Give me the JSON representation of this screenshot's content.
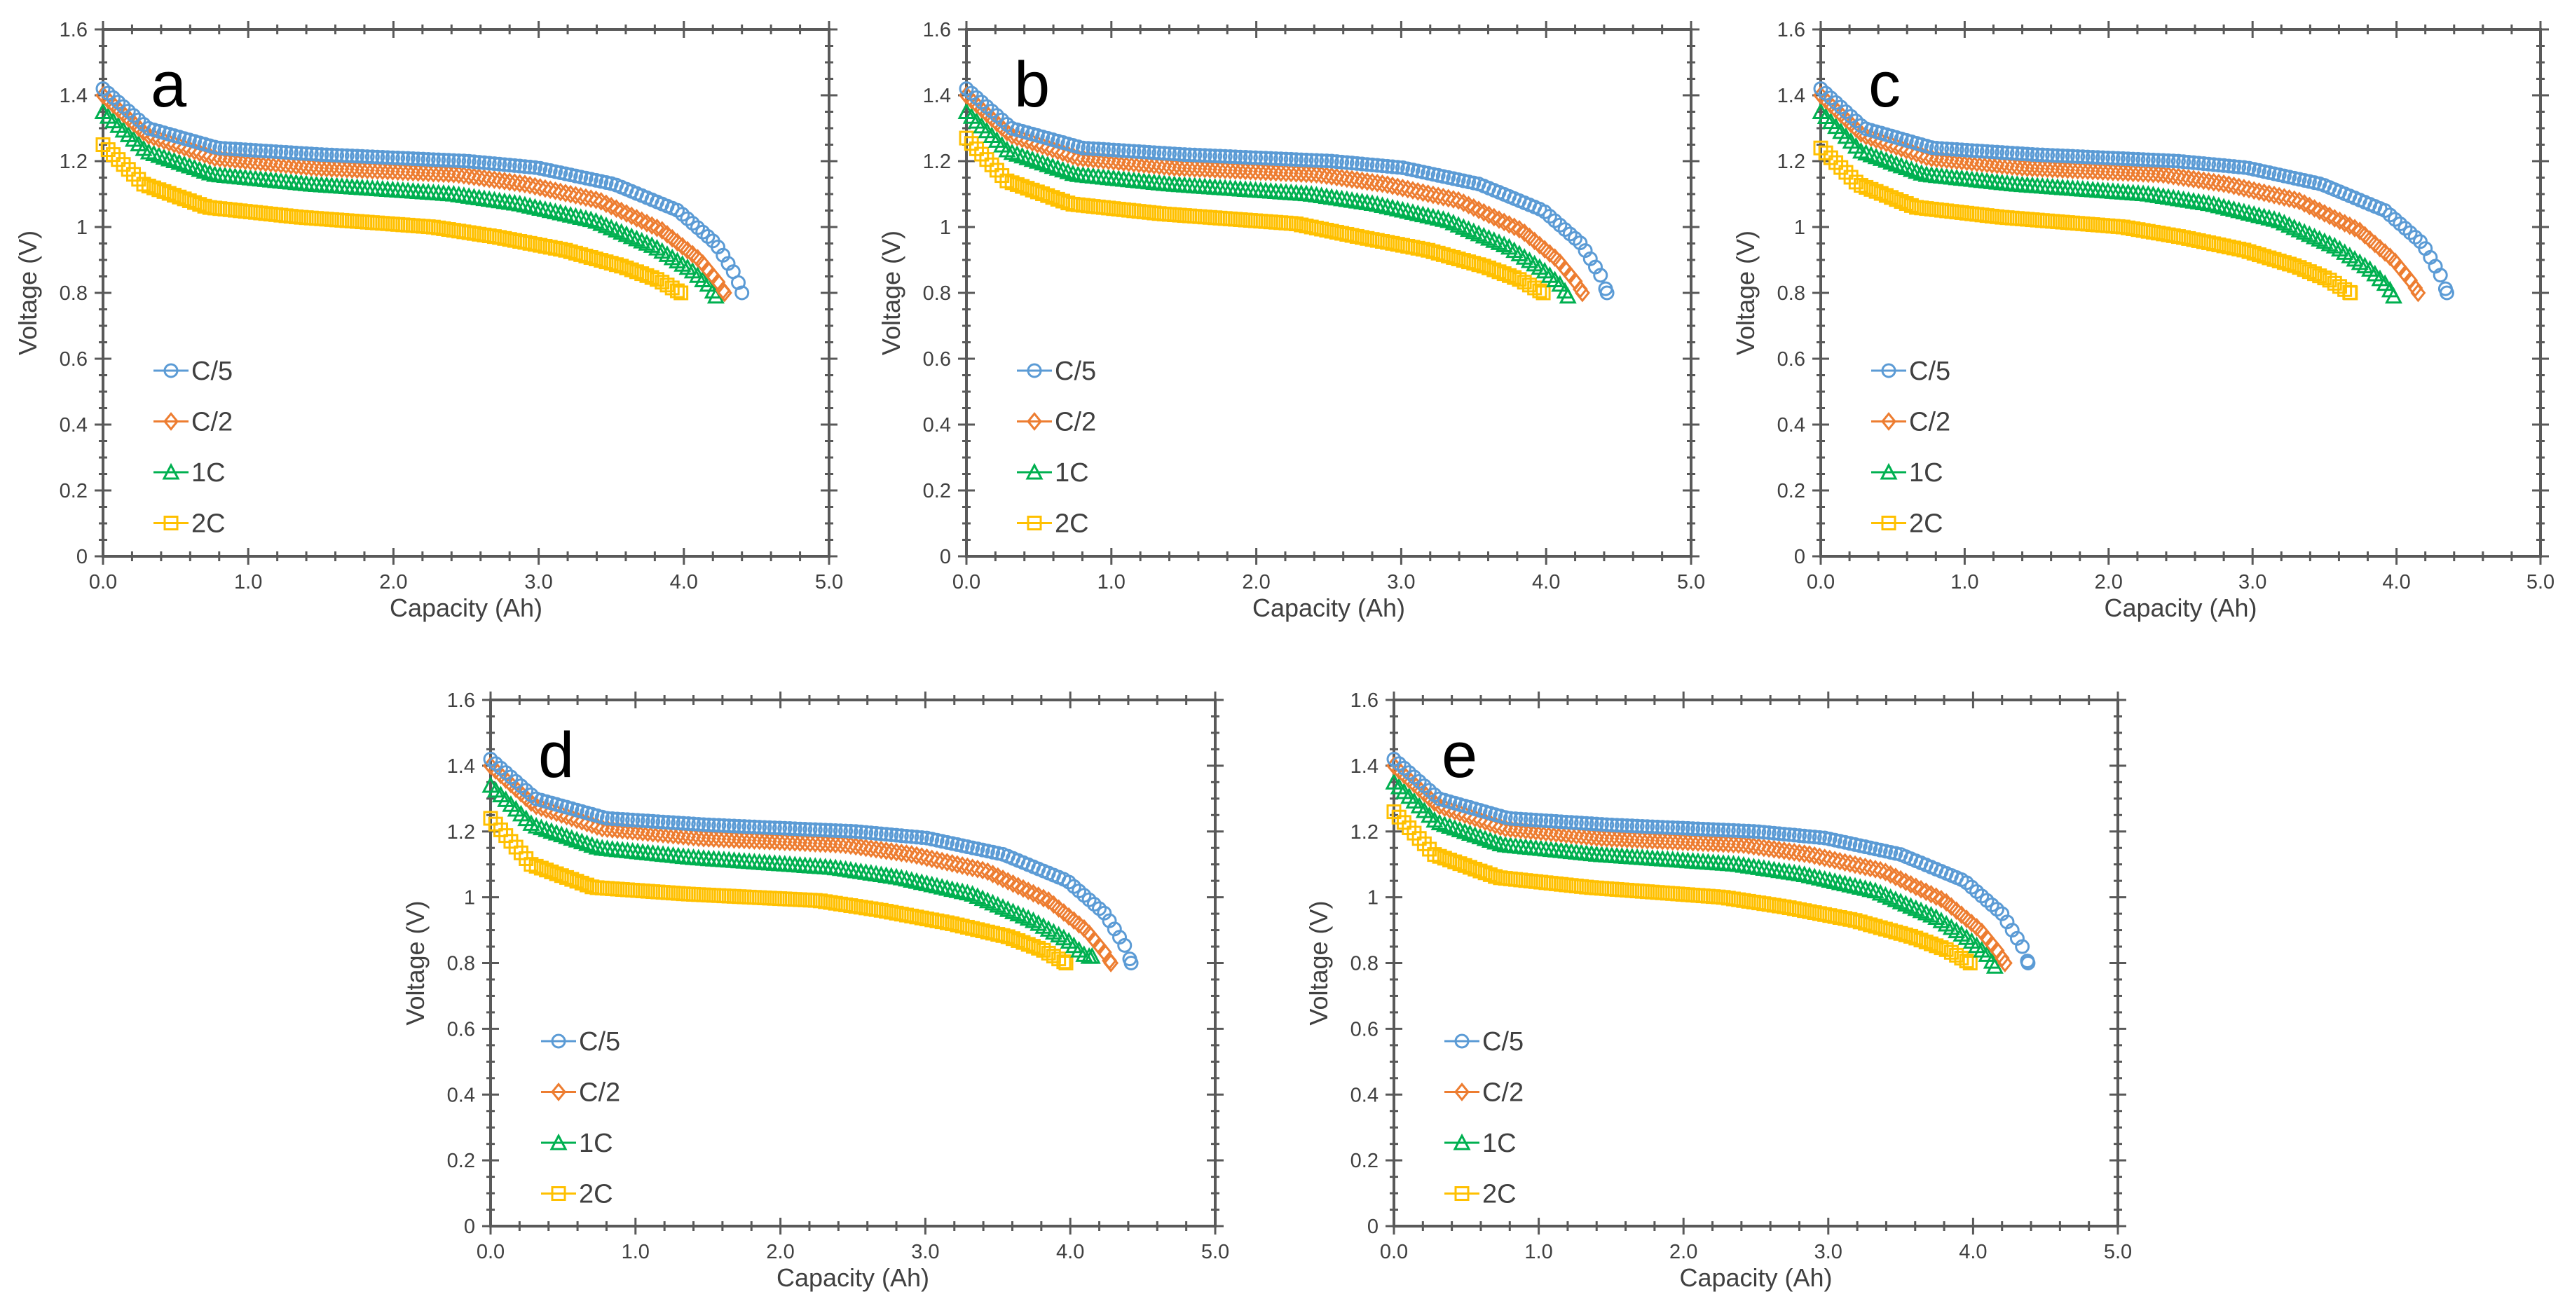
{
  "colors": {
    "C/5": "#5B9BD5",
    "C/2": "#ED7D31",
    "1C": "#00B050",
    "2C": "#FFC000",
    "axis": "#595959"
  },
  "chart_data": [
    {
      "type": "scatter",
      "panel": "a",
      "xlabel": "Capacity (Ah)",
      "ylabel": "Voltage (V)",
      "xlim": [
        0,
        5
      ],
      "ylim": [
        0,
        1.6
      ],
      "x_ticks": [
        "0.0",
        "1.0",
        "2.0",
        "3.0",
        "4.0",
        "5.0"
      ],
      "y_ticks": [
        "0",
        "0.2",
        "0.4",
        "0.6",
        "0.8",
        "1",
        "1.2",
        "1.4",
        "1.6"
      ],
      "legend": [
        "C/5",
        "C/2",
        "1C",
        "2C"
      ],
      "legend_position": "lower-left",
      "series": [
        {
          "name": "C/5",
          "marker": "circle",
          "x": [
            0,
            0.31,
            0.79,
            1.5,
            2.51,
            2.99,
            3.52,
            3.96,
            4.22,
            4.36,
            4.4
          ],
          "y": [
            1.42,
            1.3,
            1.24,
            1.22,
            1.2,
            1.18,
            1.13,
            1.05,
            0.95,
            0.85,
            0.8
          ]
        },
        {
          "name": "C/2",
          "marker": "diamond",
          "x": [
            0,
            0.3,
            0.77,
            1.46,
            2.44,
            2.91,
            3.42,
            3.85,
            4.11,
            4.24,
            4.28
          ],
          "y": [
            1.4,
            1.28,
            1.21,
            1.18,
            1.16,
            1.13,
            1.08,
            0.99,
            0.9,
            0.83,
            0.8
          ]
        },
        {
          "name": "1C",
          "marker": "triangle",
          "x": [
            0,
            0.3,
            0.76,
            1.43,
            2.41,
            2.87,
            3.38,
            3.8,
            4.05,
            4.18,
            4.22
          ],
          "y": [
            1.35,
            1.23,
            1.16,
            1.13,
            1.1,
            1.07,
            1.02,
            0.94,
            0.87,
            0.82,
            0.79
          ]
        },
        {
          "name": "2C",
          "marker": "square",
          "x": [
            0,
            0.28,
            0.72,
            1.35,
            2.27,
            2.71,
            3.18,
            3.58,
            3.82,
            3.94,
            3.98
          ],
          "y": [
            1.25,
            1.13,
            1.06,
            1.03,
            1.0,
            0.97,
            0.93,
            0.88,
            0.84,
            0.81,
            0.8
          ]
        }
      ]
    },
    {
      "type": "scatter",
      "panel": "b",
      "xlabel": "Capacity (Ah)",
      "ylabel": "Voltage (V)",
      "xlim": [
        0,
        5
      ],
      "ylim": [
        0,
        1.6
      ],
      "x_ticks": [
        "0.0",
        "1.0",
        "2.0",
        "3.0",
        "4.0",
        "5.0"
      ],
      "y_ticks": [
        "0",
        "0.2",
        "0.4",
        "0.6",
        "0.8",
        "1",
        "1.2",
        "1.4",
        "1.6"
      ],
      "legend": [
        "C/5",
        "C/2",
        "1C",
        "2C"
      ],
      "legend_position": "lower-left",
      "series": [
        {
          "name": "C/5",
          "marker": "circle",
          "x": [
            0,
            0.31,
            0.8,
            1.5,
            2.52,
            3.01,
            3.54,
            3.98,
            4.24,
            4.38,
            4.42
          ],
          "y": [
            1.42,
            1.3,
            1.24,
            1.22,
            1.2,
            1.18,
            1.13,
            1.05,
            0.95,
            0.85,
            0.8
          ]
        },
        {
          "name": "C/2",
          "marker": "diamond",
          "x": [
            0,
            0.3,
            0.77,
            1.45,
            2.42,
            2.89,
            3.4,
            3.83,
            4.08,
            4.21,
            4.25
          ],
          "y": [
            1.4,
            1.28,
            1.21,
            1.18,
            1.16,
            1.13,
            1.08,
            0.99,
            0.9,
            0.83,
            0.8
          ]
        },
        {
          "name": "1C",
          "marker": "triangle",
          "x": [
            0,
            0.29,
            0.75,
            1.41,
            2.37,
            2.82,
            3.32,
            3.74,
            3.98,
            4.11,
            4.15
          ],
          "y": [
            1.35,
            1.23,
            1.16,
            1.13,
            1.1,
            1.07,
            1.02,
            0.94,
            0.87,
            0.82,
            0.79
          ]
        },
        {
          "name": "2C",
          "marker": "square",
          "x": [
            0,
            0.28,
            0.72,
            1.35,
            2.27,
            2.71,
            3.18,
            3.58,
            3.82,
            3.94,
            3.98
          ],
          "y": [
            1.27,
            1.14,
            1.07,
            1.04,
            1.01,
            0.97,
            0.93,
            0.88,
            0.84,
            0.81,
            0.8
          ]
        }
      ]
    },
    {
      "type": "scatter",
      "panel": "c",
      "xlabel": "Capacity (Ah)",
      "ylabel": "Voltage (V)",
      "xlim": [
        0,
        5
      ],
      "ylim": [
        0,
        1.6
      ],
      "x_ticks": [
        "0.0",
        "1.0",
        "2.0",
        "3.0",
        "4.0",
        "5.0"
      ],
      "y_ticks": [
        "0",
        "0.2",
        "0.4",
        "0.6",
        "0.8",
        "1",
        "1.2",
        "1.4",
        "1.6"
      ],
      "legend": [
        "C/5",
        "C/2",
        "1C",
        "2C"
      ],
      "legend_position": "lower-left",
      "series": [
        {
          "name": "C/5",
          "marker": "circle",
          "x": [
            0,
            0.3,
            0.78,
            1.48,
            2.48,
            2.96,
            3.48,
            3.92,
            4.18,
            4.31,
            4.35
          ],
          "y": [
            1.42,
            1.3,
            1.24,
            1.22,
            1.2,
            1.18,
            1.13,
            1.05,
            0.95,
            0.85,
            0.8
          ]
        },
        {
          "name": "C/2",
          "marker": "diamond",
          "x": [
            0,
            0.29,
            0.75,
            1.41,
            2.37,
            2.82,
            3.32,
            3.74,
            3.98,
            4.11,
            4.15
          ],
          "y": [
            1.4,
            1.28,
            1.21,
            1.18,
            1.16,
            1.13,
            1.08,
            0.99,
            0.9,
            0.83,
            0.8
          ]
        },
        {
          "name": "1C",
          "marker": "triangle",
          "x": [
            0,
            0.28,
            0.72,
            1.35,
            2.27,
            2.71,
            3.18,
            3.58,
            3.82,
            3.94,
            3.98
          ],
          "y": [
            1.35,
            1.23,
            1.16,
            1.13,
            1.1,
            1.07,
            1.02,
            0.94,
            0.87,
            0.82,
            0.79
          ]
        },
        {
          "name": "2C",
          "marker": "square",
          "x": [
            0,
            0.26,
            0.66,
            1.25,
            2.1,
            2.5,
            2.94,
            3.31,
            3.53,
            3.64,
            3.68
          ],
          "y": [
            1.24,
            1.13,
            1.06,
            1.03,
            1.0,
            0.97,
            0.93,
            0.88,
            0.84,
            0.81,
            0.8
          ]
        }
      ]
    },
    {
      "type": "scatter",
      "panel": "d",
      "xlabel": "Capacity (Ah)",
      "ylabel": "Voltage (V)",
      "xlim": [
        0,
        5
      ],
      "ylim": [
        0,
        1.6
      ],
      "x_ticks": [
        "0.0",
        "1.0",
        "2.0",
        "3.0",
        "4.0",
        "5.0"
      ],
      "y_ticks": [
        "0",
        "0.2",
        "0.4",
        "0.6",
        "0.8",
        "1",
        "1.2",
        "1.4",
        "1.6"
      ],
      "legend": [
        "C/5",
        "C/2",
        "1C",
        "2C"
      ],
      "legend_position": "lower-left",
      "series": [
        {
          "name": "C/5",
          "marker": "circle",
          "x": [
            0,
            0.31,
            0.8,
            1.5,
            2.52,
            3.01,
            3.54,
            3.98,
            4.24,
            4.38,
            4.42
          ],
          "y": [
            1.42,
            1.3,
            1.24,
            1.22,
            1.2,
            1.18,
            1.13,
            1.05,
            0.95,
            0.85,
            0.8
          ]
        },
        {
          "name": "C/2",
          "marker": "diamond",
          "x": [
            0,
            0.3,
            0.77,
            1.46,
            2.44,
            2.91,
            3.42,
            3.85,
            4.11,
            4.24,
            4.28
          ],
          "y": [
            1.4,
            1.28,
            1.21,
            1.18,
            1.16,
            1.13,
            1.08,
            0.99,
            0.9,
            0.83,
            0.8
          ]
        },
        {
          "name": "1C",
          "marker": "triangle",
          "x": [
            0,
            0.29,
            0.75,
            1.41,
            2.37,
            2.82,
            3.32,
            3.74,
            3.98,
            4.11,
            4.15
          ],
          "y": [
            1.34,
            1.22,
            1.15,
            1.12,
            1.09,
            1.06,
            1.01,
            0.93,
            0.87,
            0.82,
            0.82
          ]
        },
        {
          "name": "2C",
          "marker": "square",
          "x": [
            0,
            0.28,
            0.71,
            1.35,
            2.26,
            2.7,
            3.18,
            3.57,
            3.81,
            3.93,
            3.97
          ],
          "y": [
            1.24,
            1.1,
            1.03,
            1.01,
            0.99,
            0.96,
            0.92,
            0.88,
            0.84,
            0.81,
            0.8
          ]
        }
      ]
    },
    {
      "type": "scatter",
      "panel": "e",
      "xlabel": "Capacity (Ah)",
      "ylabel": "Voltage (V)",
      "xlim": [
        0,
        5
      ],
      "ylim": [
        0,
        1.6
      ],
      "x_ticks": [
        "0.0",
        "1.0",
        "2.0",
        "3.0",
        "4.0",
        "5.0"
      ],
      "y_ticks": [
        "0",
        "0.2",
        "0.4",
        "0.6",
        "0.8",
        "1",
        "1.2",
        "1.4",
        "1.6"
      ],
      "legend": [
        "C/5",
        "C/2",
        "1C",
        "2C"
      ],
      "legend_position": "lower-left",
      "series": [
        {
          "name": "C/5",
          "marker": "circle",
          "x": [
            0,
            0.31,
            0.79,
            1.49,
            2.5,
            2.98,
            3.5,
            3.94,
            4.2,
            4.34,
            4.38
          ],
          "y": [
            1.42,
            1.3,
            1.24,
            1.22,
            1.2,
            1.18,
            1.13,
            1.05,
            0.95,
            0.85,
            0.8
          ]
        },
        {
          "name": "C/2",
          "marker": "diamond",
          "x": [
            0,
            0.3,
            0.76,
            1.43,
            2.41,
            2.87,
            3.38,
            3.8,
            4.05,
            4.18,
            4.22
          ],
          "y": [
            1.4,
            1.28,
            1.21,
            1.18,
            1.16,
            1.13,
            1.08,
            0.99,
            0.9,
            0.83,
            0.8
          ]
        },
        {
          "name": "1C",
          "marker": "triangle",
          "x": [
            0,
            0.29,
            0.75,
            1.41,
            2.37,
            2.82,
            3.32,
            3.74,
            3.98,
            4.11,
            4.15
          ],
          "y": [
            1.35,
            1.23,
            1.16,
            1.13,
            1.1,
            1.07,
            1.02,
            0.94,
            0.87,
            0.82,
            0.79
          ]
        },
        {
          "name": "2C",
          "marker": "square",
          "x": [
            0,
            0.28,
            0.72,
            1.35,
            2.27,
            2.71,
            3.18,
            3.58,
            3.82,
            3.94,
            3.98
          ],
          "y": [
            1.26,
            1.13,
            1.06,
            1.03,
            1.0,
            0.97,
            0.93,
            0.88,
            0.84,
            0.81,
            0.8
          ]
        }
      ]
    }
  ]
}
